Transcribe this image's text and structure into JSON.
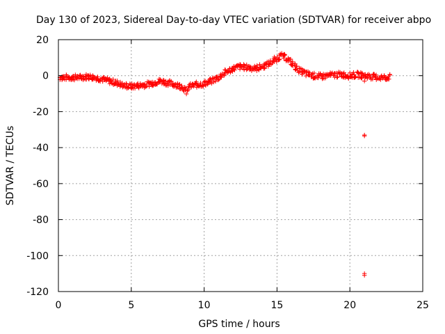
{
  "chart_data": {
    "type": "scatter",
    "title": "Day 130 of 2023, Sidereal Day-to-day VTEC variation (SDTVAR) for receiver abpo",
    "xlabel": "GPS time / hours",
    "ylabel": "SDTVAR / TECUs",
    "xlim": [
      0,
      25
    ],
    "ylim": [
      -120,
      20
    ],
    "xticks": [
      0,
      5,
      10,
      15,
      20,
      25
    ],
    "yticks": [
      20,
      0,
      -20,
      -40,
      -60,
      -80,
      -100,
      -120
    ],
    "grid": true,
    "marker": "+",
    "color": "#ff0000",
    "series": [
      {
        "name": "SDTVAR",
        "trend": [
          [
            0.1,
            -1
          ],
          [
            0.5,
            -1
          ],
          [
            1.0,
            -1
          ],
          [
            1.5,
            -1
          ],
          [
            2.0,
            -0.5
          ],
          [
            2.5,
            -1
          ],
          [
            3.0,
            -2
          ],
          [
            3.5,
            -3
          ],
          [
            4.0,
            -4
          ],
          [
            4.5,
            -5.5
          ],
          [
            5.0,
            -6
          ],
          [
            5.5,
            -5.5
          ],
          [
            6.0,
            -5
          ],
          [
            6.5,
            -4
          ],
          [
            7.0,
            -3
          ],
          [
            7.5,
            -4
          ],
          [
            8.0,
            -5
          ],
          [
            8.5,
            -6
          ],
          [
            8.8,
            -9
          ],
          [
            9.0,
            -6
          ],
          [
            9.5,
            -5
          ],
          [
            10.0,
            -4.5
          ],
          [
            10.5,
            -3
          ],
          [
            11.0,
            -1
          ],
          [
            11.5,
            2
          ],
          [
            12.0,
            4
          ],
          [
            12.5,
            5
          ],
          [
            13.0,
            4.5
          ],
          [
            13.5,
            4
          ],
          [
            14.0,
            5
          ],
          [
            14.5,
            7
          ],
          [
            15.0,
            9.5
          ],
          [
            15.3,
            11
          ],
          [
            15.6,
            10
          ],
          [
            16.0,
            7
          ],
          [
            16.5,
            3
          ],
          [
            17.0,
            1
          ],
          [
            17.5,
            0
          ],
          [
            18.0,
            -0.5
          ],
          [
            18.5,
            0
          ],
          [
            19.0,
            0.5
          ],
          [
            19.5,
            0.5
          ],
          [
            20.0,
            0
          ],
          [
            20.5,
            0.5
          ],
          [
            21.0,
            0
          ],
          [
            21.5,
            -0.5
          ],
          [
            22.0,
            -1
          ],
          [
            22.5,
            -1
          ],
          [
            22.8,
            -0.5
          ]
        ],
        "outliers": [
          [
            21.0,
            -3
          ],
          [
            21.0,
            -33
          ],
          [
            21.0,
            -33.5
          ],
          [
            21.0,
            -110
          ],
          [
            21.0,
            -111
          ]
        ]
      }
    ]
  }
}
